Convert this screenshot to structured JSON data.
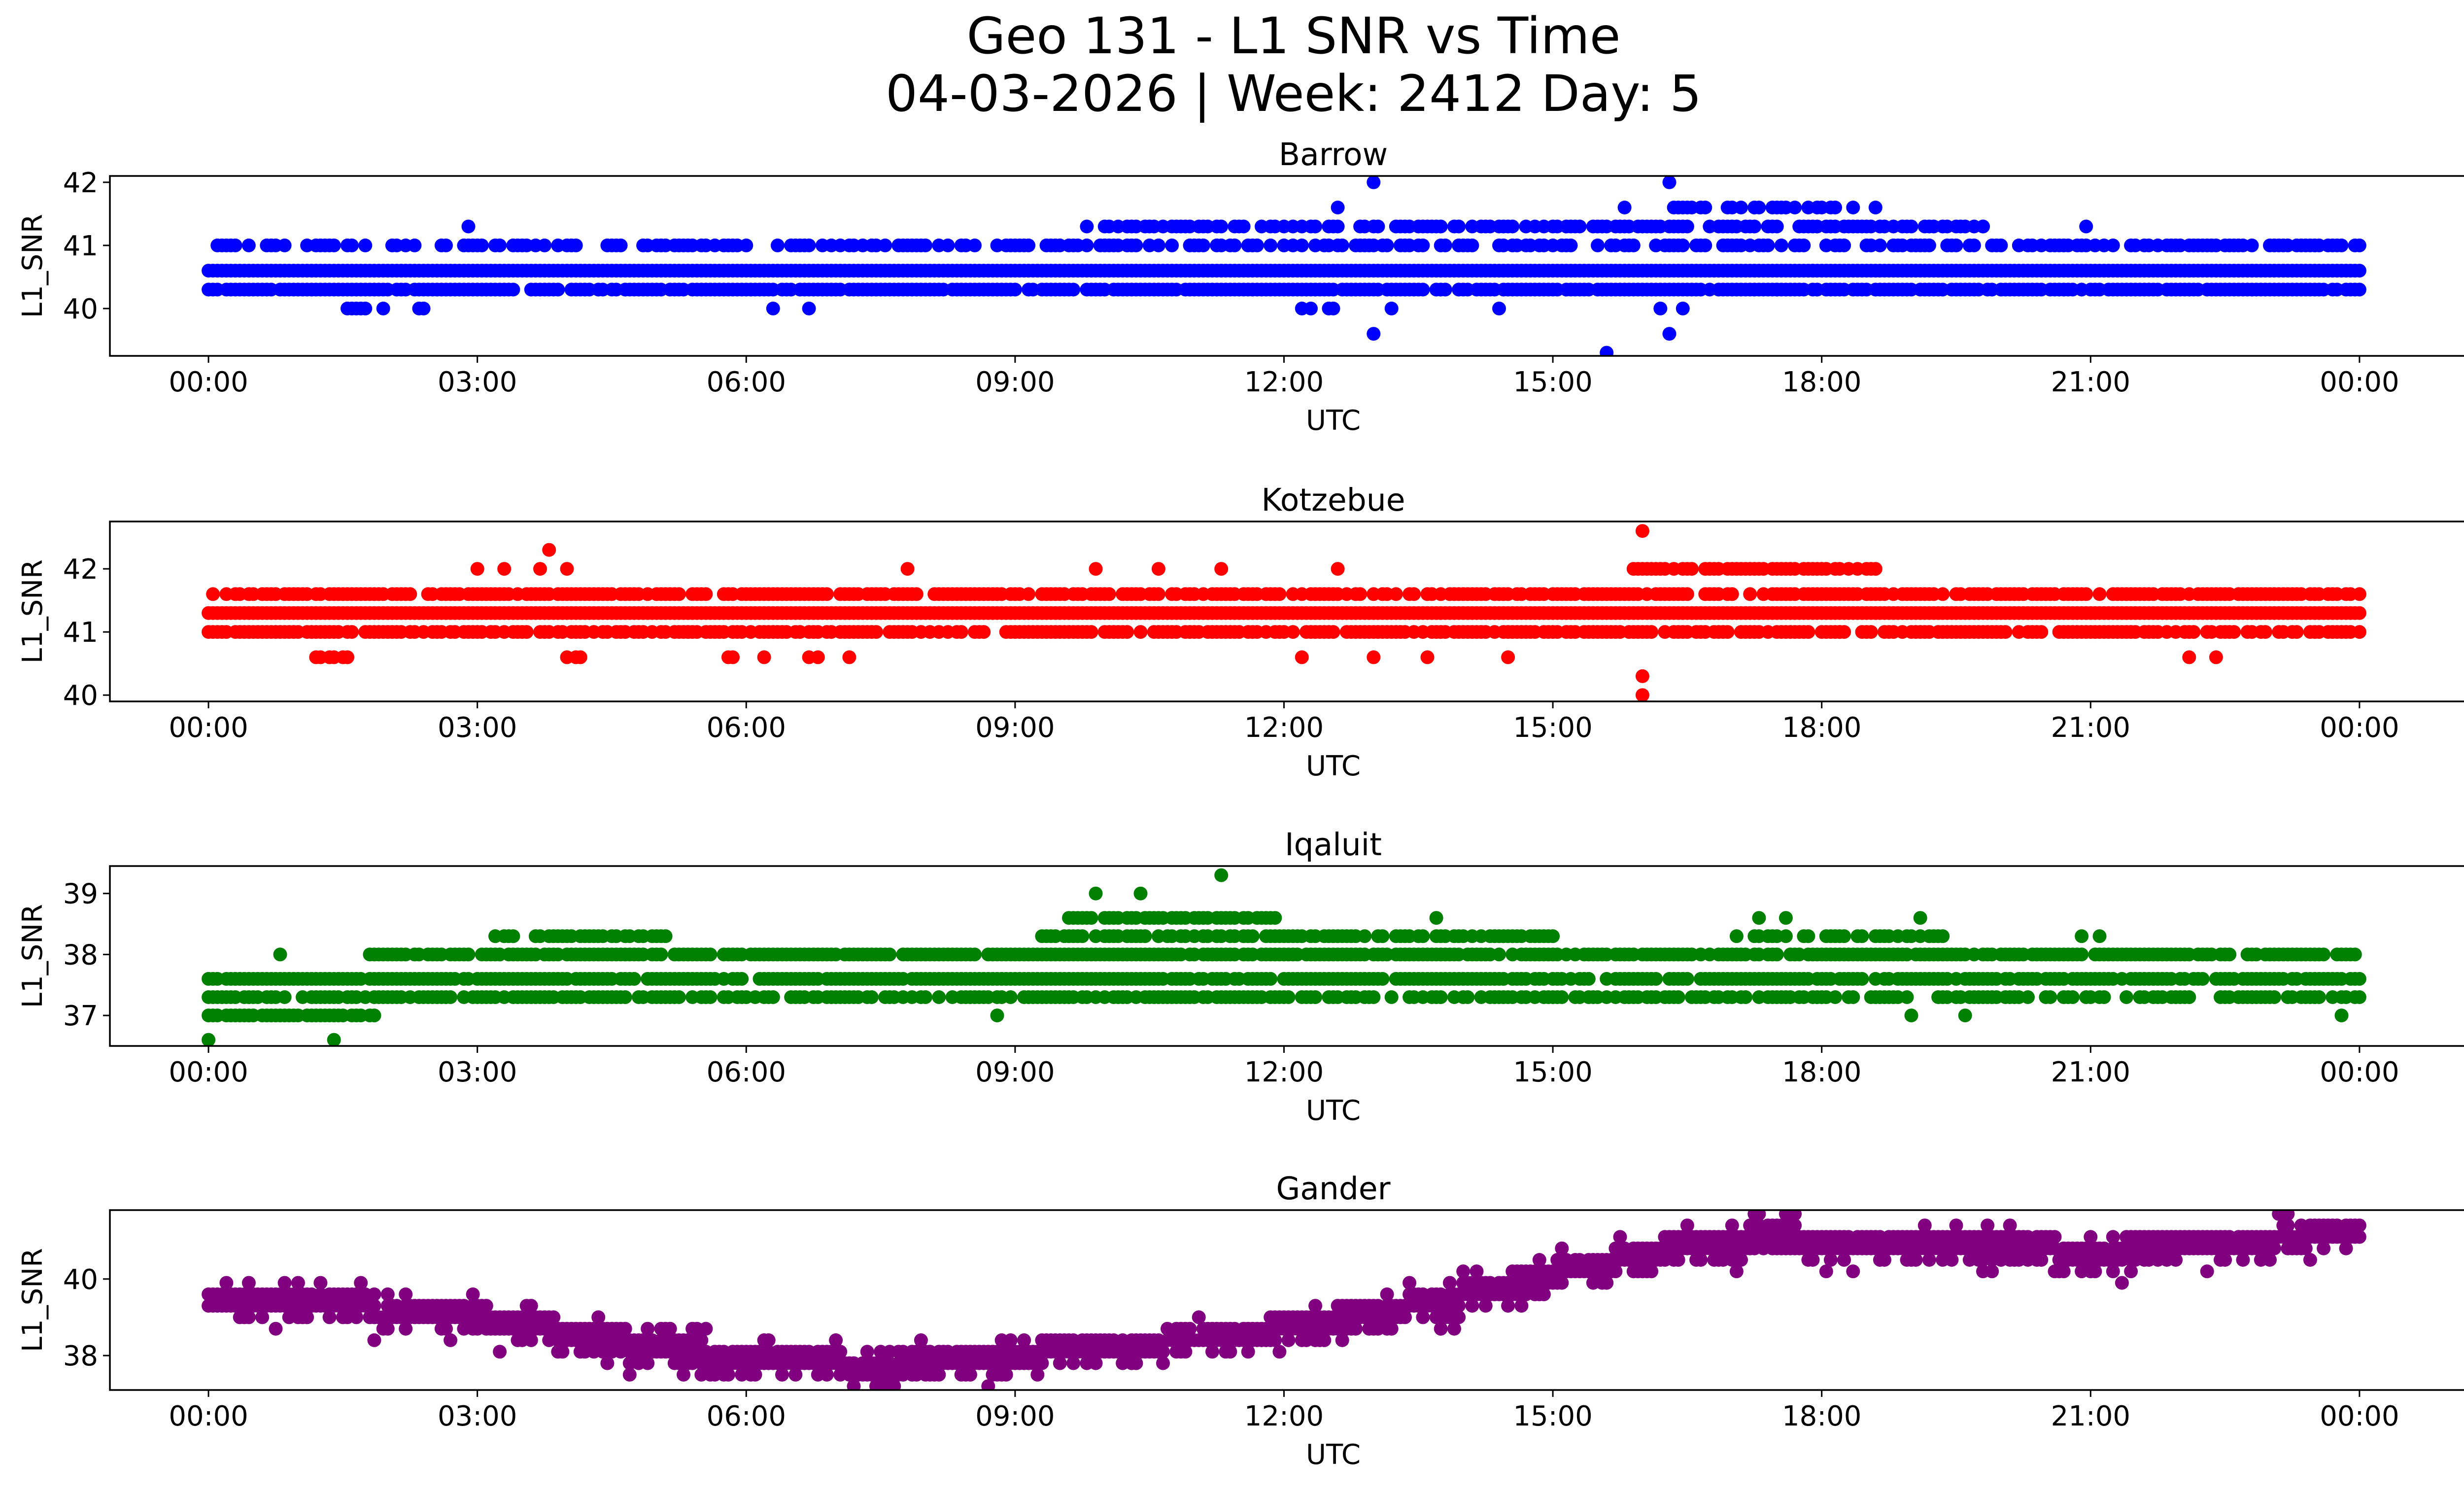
{
  "chart_data": {
    "type": "scatter",
    "title": "Geo 131 - L1 SNR vs Time",
    "subtitle": "04-03-2026 | Week: 2412 Day: 5",
    "panels": [
      {
        "title": "Barrow",
        "color": "#0000ff",
        "xlabel": "UTC",
        "ylabel": "L1_SNR",
        "xlim": [
          -1.1,
          26.2
        ],
        "ylim": [
          39.25,
          42.1
        ],
        "x_ticks": [
          "00:00",
          "03:00",
          "06:00",
          "09:00",
          "12:00",
          "15:00",
          "18:00",
          "21:00",
          "00:00"
        ],
        "y_ticks": [
          40,
          41,
          42
        ],
        "levels": [
          {
            "y": 40.3,
            "ranges": [
              [
                0.0,
                24.0
              ]
            ],
            "density": 0.9
          },
          {
            "y": 40.6,
            "ranges": [
              [
                0.0,
                24.0
              ]
            ],
            "density": 1.0
          },
          {
            "y": 41.0,
            "ranges": [
              [
                0.0,
                24.0
              ]
            ],
            "density": 0.55
          },
          {
            "y": 41.3,
            "ranges": [
              [
                9.8,
                19.8
              ],
              [
                20.9,
                21.0
              ]
            ],
            "density": 0.7
          },
          {
            "y": 41.6,
            "ranges": [
              [
                16.3,
                18.7
              ]
            ],
            "density": 0.5
          },
          {
            "y": 40.0,
            "ranges": [
              [
                1.3,
                2.6
              ],
              [
                12.2,
                12.6
              ],
              [
                16.2,
                16.5
              ]
            ],
            "density": 0.3
          }
        ],
        "points": [
          [
            0.2,
            41.0
          ],
          [
            2.9,
            41.3
          ],
          [
            6.3,
            40.0
          ],
          [
            6.7,
            40.0
          ],
          [
            12.6,
            41.6
          ],
          [
            13.0,
            42.0
          ],
          [
            13.0,
            39.6
          ],
          [
            13.2,
            40.0
          ],
          [
            13.5,
            41.3
          ],
          [
            14.4,
            40.0
          ],
          [
            15.6,
            39.3
          ],
          [
            15.8,
            41.6
          ],
          [
            16.3,
            42.0
          ],
          [
            16.3,
            39.6
          ],
          [
            17.5,
            40.3
          ],
          [
            17.9,
            40.6
          ],
          [
            19.8,
            41.3
          ]
        ]
      },
      {
        "title": "Kotzebue",
        "color": "#ff0000",
        "xlabel": "UTC",
        "ylabel": "L1_SNR",
        "xlim": [
          -1.1,
          26.2
        ],
        "ylim": [
          39.9,
          42.75
        ],
        "x_ticks": [
          "00:00",
          "03:00",
          "06:00",
          "09:00",
          "12:00",
          "15:00",
          "18:00",
          "21:00",
          "00:00"
        ],
        "y_ticks": [
          40,
          41,
          42
        ],
        "levels": [
          {
            "y": 41.0,
            "ranges": [
              [
                0.0,
                24.0
              ]
            ],
            "density": 0.75
          },
          {
            "y": 41.3,
            "ranges": [
              [
                0.0,
                24.0
              ]
            ],
            "density": 1.0
          },
          {
            "y": 41.6,
            "ranges": [
              [
                0.0,
                24.0
              ]
            ],
            "density": 0.75
          },
          {
            "y": 42.0,
            "ranges": [
              [
                15.9,
                18.6
              ]
            ],
            "density": 0.85
          },
          {
            "y": 40.6,
            "ranges": [
              [
                1.2,
                1.6
              ],
              [
                3.9,
                4.3
              ],
              [
                5.8,
                7.2
              ]
            ],
            "density": 0.35
          }
        ],
        "points": [
          [
            3.0,
            42.0
          ],
          [
            3.3,
            42.0
          ],
          [
            3.7,
            42.0
          ],
          [
            3.8,
            42.3
          ],
          [
            4.0,
            42.0
          ],
          [
            7.8,
            42.0
          ],
          [
            9.9,
            42.0
          ],
          [
            10.6,
            42.0
          ],
          [
            11.3,
            42.0
          ],
          [
            12.6,
            42.0
          ],
          [
            12.2,
            40.6
          ],
          [
            13.0,
            40.6
          ],
          [
            13.6,
            40.6
          ],
          [
            14.5,
            40.6
          ],
          [
            16.0,
            42.6
          ],
          [
            16.0,
            40.3
          ],
          [
            16.0,
            40.0
          ],
          [
            18.2,
            41.0
          ],
          [
            22.1,
            40.6
          ],
          [
            22.4,
            40.6
          ]
        ]
      },
      {
        "title": "Iqaluit",
        "color": "#008000",
        "xlabel": "UTC",
        "ylabel": "L1_SNR",
        "xlim": [
          -1.1,
          26.2
        ],
        "ylim": [
          36.5,
          39.45
        ],
        "x_ticks": [
          "00:00",
          "03:00",
          "06:00",
          "09:00",
          "12:00",
          "15:00",
          "18:00",
          "21:00",
          "00:00"
        ],
        "y_ticks": [
          37,
          38,
          39
        ],
        "levels": [
          {
            "y": 37.0,
            "ranges": [
              [
                0.0,
                1.9
              ]
            ],
            "density": 0.8
          },
          {
            "y": 37.3,
            "ranges": [
              [
                0.0,
                24.0
              ]
            ],
            "density": 0.7
          },
          {
            "y": 37.6,
            "ranges": [
              [
                0.0,
                24.0
              ]
            ],
            "density": 0.9
          },
          {
            "y": 38.0,
            "ranges": [
              [
                1.8,
                24.0
              ]
            ],
            "density": 0.85
          },
          {
            "y": 38.3,
            "ranges": [
              [
                3.2,
                5.1
              ],
              [
                9.2,
                15.0
              ],
              [
                17.0,
                19.5
              ]
            ],
            "density": 0.7
          },
          {
            "y": 38.6,
            "ranges": [
              [
                9.6,
                11.9
              ]
            ],
            "density": 0.8
          }
        ],
        "points": [
          [
            0.8,
            38.0
          ],
          [
            0.0,
            36.6
          ],
          [
            1.4,
            36.6
          ],
          [
            9.9,
            39.0
          ],
          [
            10.4,
            39.0
          ],
          [
            11.3,
            39.3
          ],
          [
            13.7,
            38.6
          ],
          [
            17.3,
            38.6
          ],
          [
            17.6,
            38.6
          ],
          [
            19.1,
            38.6
          ],
          [
            8.8,
            37.0
          ],
          [
            19.0,
            37.0
          ],
          [
            19.6,
            37.0
          ],
          [
            23.8,
            37.0
          ],
          [
            20.9,
            38.3
          ],
          [
            21.1,
            38.3
          ]
        ]
      },
      {
        "title": "Gander",
        "color": "#800080",
        "xlabel": "UTC",
        "ylabel": "L1_SNR",
        "xlim": [
          -1.1,
          26.2
        ],
        "ylim": [
          37.1,
          41.8
        ],
        "x_ticks": [
          "00:00",
          "03:00",
          "06:00",
          "09:00",
          "12:00",
          "15:00",
          "18:00",
          "21:00",
          "00:00"
        ],
        "y_ticks": [
          38,
          40
        ],
        "trend": [
          [
            0.0,
            39.4
          ],
          [
            1.5,
            39.2
          ],
          [
            3.0,
            38.9
          ],
          [
            4.5,
            38.3
          ],
          [
            6.0,
            37.8
          ],
          [
            7.5,
            37.6
          ],
          [
            9.0,
            37.9
          ],
          [
            10.5,
            38.2
          ],
          [
            12.0,
            38.6
          ],
          [
            13.5,
            39.2
          ],
          [
            15.0,
            40.0
          ],
          [
            16.5,
            40.8
          ],
          [
            17.5,
            41.0
          ],
          [
            18.0,
            40.9
          ],
          [
            19.5,
            40.8
          ],
          [
            21.0,
            40.6
          ],
          [
            22.5,
            40.8
          ],
          [
            24.0,
            41.2
          ]
        ]
      }
    ]
  }
}
